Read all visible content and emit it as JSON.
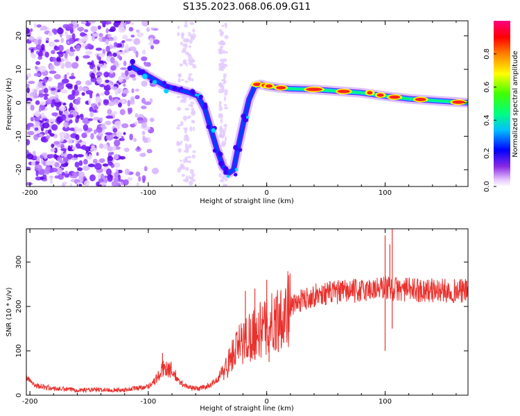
{
  "figure": {
    "title": "S135.2023.068.06.09.G11"
  },
  "chart_data": [
    {
      "type": "heatmap",
      "title": "S135.2023.068.06.09.G11",
      "xlabel": "Height of straight line (km)",
      "ylabel": "Frequency (Hz)",
      "xlim": [
        -203,
        170
      ],
      "ylim": [
        -25,
        24.5
      ],
      "x_ticks": [
        -200,
        -100,
        0,
        100
      ],
      "y_ticks": [
        -20,
        -10,
        0,
        10,
        20
      ],
      "colorbar": {
        "label": "Normalized spectral amplitude",
        "range": [
          0,
          1
        ],
        "ticks": [
          0.0,
          0.2,
          0.4,
          0.6,
          0.8
        ]
      },
      "ridge": [
        {
          "x": -115,
          "y": 11
        },
        {
          "x": -105,
          "y": 9
        },
        {
          "x": -95,
          "y": 7
        },
        {
          "x": -85,
          "y": 5
        },
        {
          "x": -75,
          "y": 4
        },
        {
          "x": -65,
          "y": 3
        },
        {
          "x": -58,
          "y": 2
        },
        {
          "x": -52,
          "y": -2
        },
        {
          "x": -47,
          "y": -8
        },
        {
          "x": -42,
          "y": -14
        },
        {
          "x": -37,
          "y": -19
        },
        {
          "x": -32,
          "y": -21
        },
        {
          "x": -28,
          "y": -20
        },
        {
          "x": -24,
          "y": -13
        },
        {
          "x": -19,
          "y": -5
        },
        {
          "x": -15,
          "y": 1
        },
        {
          "x": -10,
          "y": 5
        },
        {
          "x": -5,
          "y": 5.5
        },
        {
          "x": 0,
          "y": 5
        },
        {
          "x": 10,
          "y": 4.5
        },
        {
          "x": 20,
          "y": 4.2
        },
        {
          "x": 40,
          "y": 4
        },
        {
          "x": 60,
          "y": 3.5
        },
        {
          "x": 80,
          "y": 3
        },
        {
          "x": 100,
          "y": 2
        },
        {
          "x": 120,
          "y": 1.2
        },
        {
          "x": 140,
          "y": 0.7
        },
        {
          "x": 170,
          "y": 0
        }
      ]
    },
    {
      "type": "line",
      "xlabel": "Height of straight line (km)",
      "ylabel": "SNR (10 * v/v)",
      "xlim": [
        -203,
        170
      ],
      "ylim": [
        0,
        375
      ],
      "x_ticks": [
        -200,
        -100,
        0,
        100
      ],
      "y_ticks": [
        0,
        100,
        200,
        300
      ],
      "color": "#e8322e",
      "series": [
        {
          "x": [
            -203,
            -195,
            -180,
            -160,
            -140,
            -120,
            -100,
            -92,
            -86,
            -80,
            -74,
            -66,
            -58,
            -50,
            -44,
            -40,
            -36,
            -32,
            -28,
            -24,
            -20,
            -16,
            -12,
            -8,
            -4,
            0,
            4,
            8,
            12,
            16,
            20,
            24,
            30,
            40,
            50,
            60,
            70,
            80,
            90,
            96,
            100,
            104,
            108,
            112,
            120,
            140,
            160,
            170
          ],
          "y": [
            40,
            22,
            15,
            12,
            12,
            12,
            20,
            40,
            65,
            55,
            30,
            18,
            15,
            20,
            30,
            40,
            55,
            75,
            95,
            110,
            120,
            130,
            140,
            140,
            150,
            150,
            160,
            170,
            180,
            190,
            200,
            205,
            215,
            225,
            230,
            232,
            235,
            235,
            240,
            240,
            245,
            240,
            240,
            238,
            238,
            236,
            235,
            235
          ]
        }
      ],
      "spikes": [
        {
          "x": 100,
          "y": 360
        },
        {
          "x": 100,
          "y": 100
        },
        {
          "x": 104,
          "y": 340
        },
        {
          "x": 106,
          "y": 375
        },
        {
          "x": 106,
          "y": 150
        },
        {
          "x": 0,
          "y": 260
        },
        {
          "x": -10,
          "y": 240
        },
        {
          "x": -18,
          "y": 235
        },
        {
          "x": 2,
          "y": 75
        },
        {
          "x": -88,
          "y": 95
        }
      ]
    }
  ]
}
